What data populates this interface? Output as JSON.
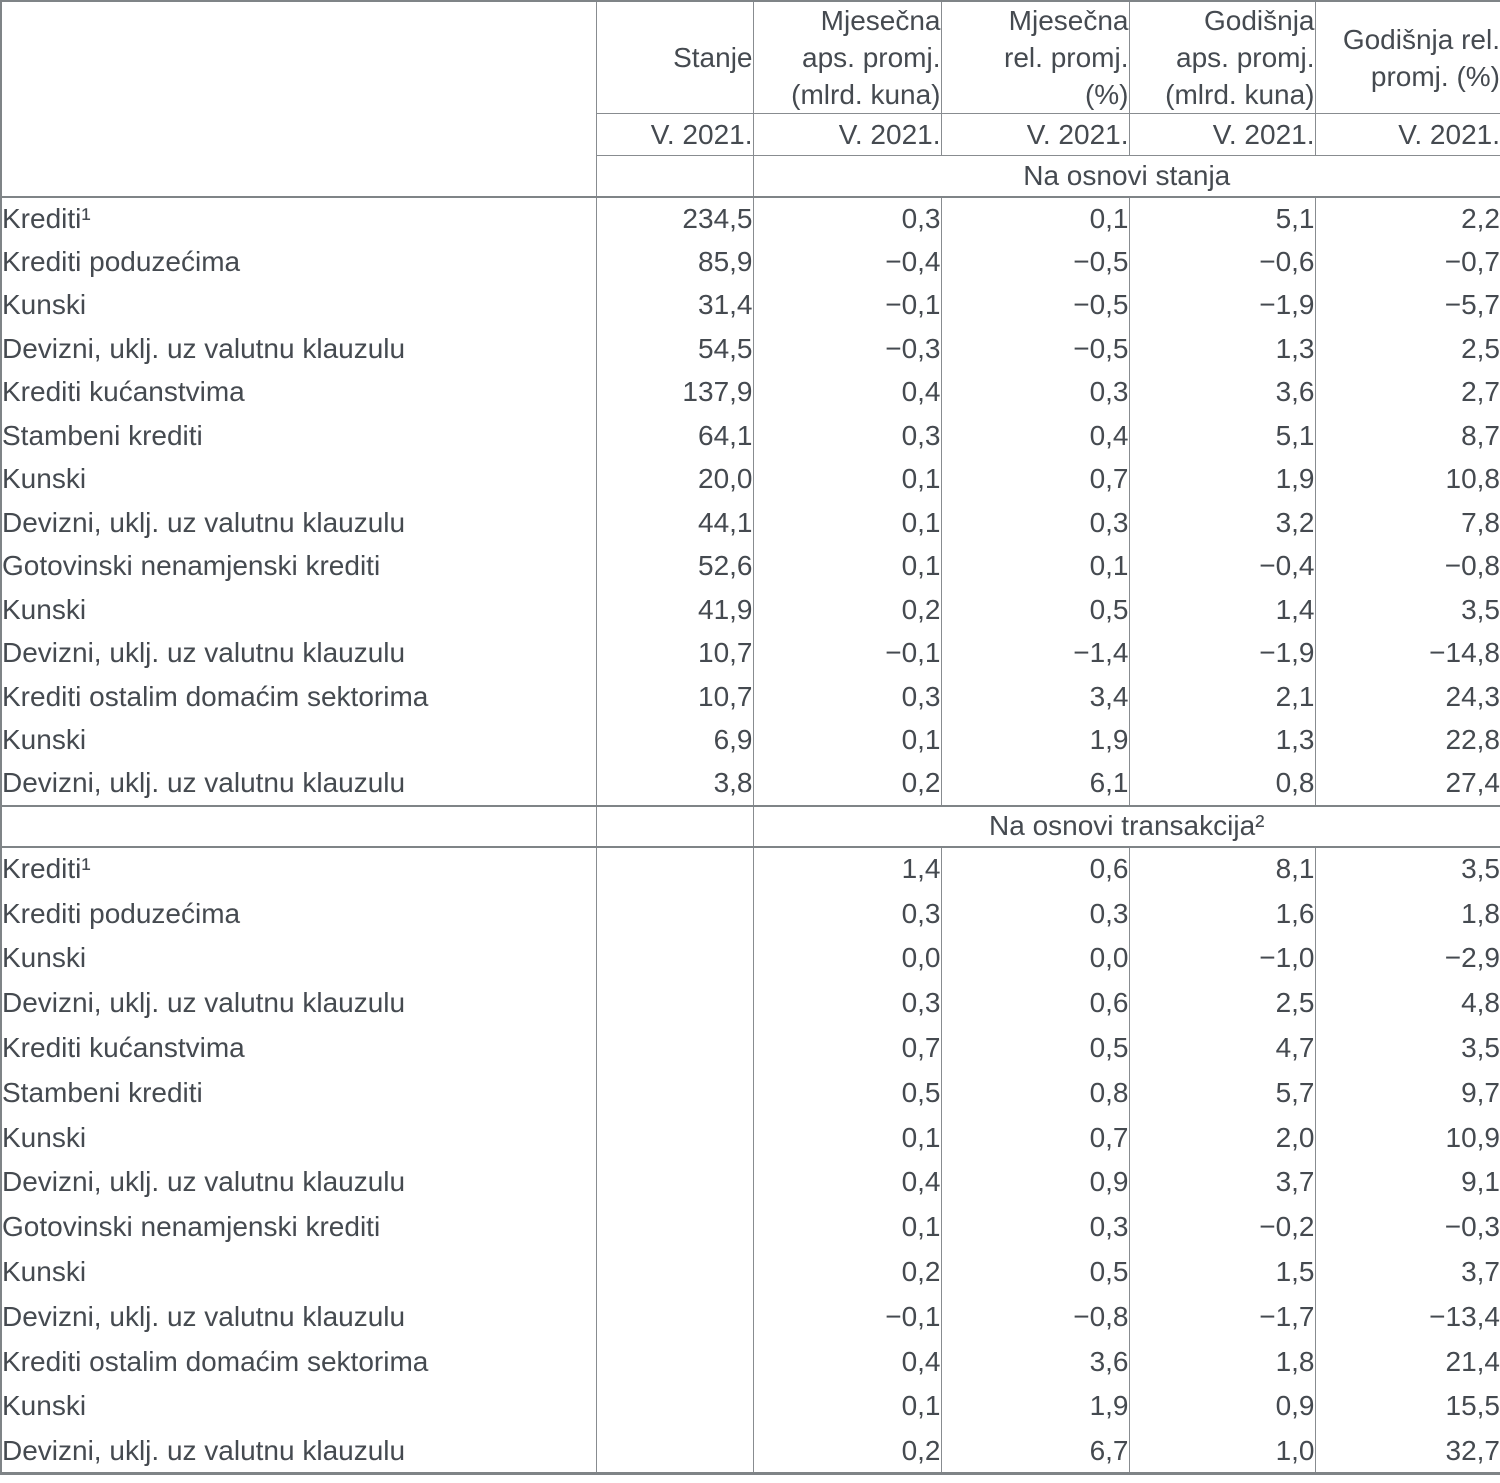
{
  "header": {
    "period": "V. 2021.",
    "columns": [
      "Stanje",
      "Mjesečna\naps. promj.\n(mlrd. kuna)",
      "Mjesečna\nrel. promj.\n(%)",
      "Godišnja\naps. promj.\n(mlrd. kuna)",
      "Godišnja rel.\npromj. (%)"
    ]
  },
  "sections": [
    {
      "band": "Na osnovi stanja",
      "rows": [
        {
          "label": "Krediti¹",
          "indent": 0,
          "values": [
            "234,5",
            "0,3",
            "0,1",
            "5,1",
            "2,2"
          ]
        },
        {
          "label": "Krediti poduzećima",
          "indent": 1,
          "values": [
            "85,9",
            "−0,4",
            "−0,5",
            "−0,6",
            "−0,7"
          ]
        },
        {
          "label": "Kunski",
          "indent": 3,
          "values": [
            "31,4",
            "−0,1",
            "−0,5",
            "−1,9",
            "−5,7"
          ]
        },
        {
          "label": "Devizni, uklj. uz valutnu klauzulu",
          "indent": 3,
          "values": [
            "54,5",
            "−0,3",
            "−0,5",
            "1,3",
            "2,5"
          ]
        },
        {
          "label": "Krediti kućanstvima",
          "indent": 1,
          "values": [
            "137,9",
            "0,4",
            "0,3",
            "3,6",
            "2,7"
          ]
        },
        {
          "label": "Stambeni krediti",
          "indent": 2,
          "values": [
            "64,1",
            "0,3",
            "0,4",
            "5,1",
            "8,7"
          ]
        },
        {
          "label": "Kunski",
          "indent": 3,
          "values": [
            "20,0",
            "0,1",
            "0,7",
            "1,9",
            "10,8"
          ]
        },
        {
          "label": "Devizni, uklj. uz valutnu klauzulu",
          "indent": 3,
          "values": [
            "44,1",
            "0,1",
            "0,3",
            "3,2",
            "7,8"
          ]
        },
        {
          "label": "Gotovinski nenamjenski krediti",
          "indent": 2,
          "values": [
            "52,6",
            "0,1",
            "0,1",
            "−0,4",
            "−0,8"
          ]
        },
        {
          "label": "Kunski",
          "indent": 3,
          "values": [
            "41,9",
            "0,2",
            "0,5",
            "1,4",
            "3,5"
          ]
        },
        {
          "label": "Devizni, uklj. uz valutnu klauzulu",
          "indent": 3,
          "values": [
            "10,7",
            "−0,1",
            "−1,4",
            "−1,9",
            "−14,8"
          ]
        },
        {
          "label": "Krediti ostalim domaćim sektorima",
          "indent": 1,
          "values": [
            "10,7",
            "0,3",
            "3,4",
            "2,1",
            "24,3"
          ]
        },
        {
          "label": "Kunski",
          "indent": 3,
          "values": [
            "6,9",
            "0,1",
            "1,9",
            "1,3",
            "22,8"
          ]
        },
        {
          "label": "Devizni, uklj. uz valutnu klauzulu",
          "indent": 3,
          "values": [
            "3,8",
            "0,2",
            "6,1",
            "0,8",
            "27,4"
          ]
        }
      ]
    },
    {
      "band": "Na osnovi transakcija²",
      "rows": [
        {
          "label": "Krediti¹",
          "indent": 0,
          "values": [
            "",
            "1,4",
            "0,6",
            "8,1",
            "3,5"
          ]
        },
        {
          "label": "Krediti poduzećima",
          "indent": 1,
          "values": [
            "",
            "0,3",
            "0,3",
            "1,6",
            "1,8"
          ]
        },
        {
          "label": "Kunski",
          "indent": 3,
          "values": [
            "",
            "0,0",
            "0,0",
            "−1,0",
            "−2,9"
          ]
        },
        {
          "label": "Devizni, uklj. uz valutnu klauzulu",
          "indent": 3,
          "values": [
            "",
            "0,3",
            "0,6",
            "2,5",
            "4,8"
          ]
        },
        {
          "label": "Krediti kućanstvima",
          "indent": 1,
          "values": [
            "",
            "0,7",
            "0,5",
            "4,7",
            "3,5"
          ]
        },
        {
          "label": "Stambeni krediti",
          "indent": 2,
          "values": [
            "",
            "0,5",
            "0,8",
            "5,7",
            "9,7"
          ]
        },
        {
          "label": "Kunski",
          "indent": 3,
          "values": [
            "",
            "0,1",
            "0,7",
            "2,0",
            "10,9"
          ]
        },
        {
          "label": "Devizni, uklj. uz valutnu klauzulu",
          "indent": 3,
          "values": [
            "",
            "0,4",
            "0,9",
            "3,7",
            "9,1"
          ]
        },
        {
          "label": "Gotovinski nenamjenski krediti",
          "indent": 2,
          "values": [
            "",
            "0,1",
            "0,3",
            "−0,2",
            "−0,3"
          ]
        },
        {
          "label": "Kunski",
          "indent": 3,
          "values": [
            "",
            "0,2",
            "0,5",
            "1,5",
            "3,7"
          ]
        },
        {
          "label": "Devizni, uklj. uz valutnu klauzulu",
          "indent": 3,
          "values": [
            "",
            "−0,1",
            "−0,8",
            "−1,7",
            "−13,4"
          ]
        },
        {
          "label": "Krediti ostalim domaćim sektorima",
          "indent": 1,
          "values": [
            "",
            "0,4",
            "3,6",
            "1,8",
            "21,4"
          ]
        },
        {
          "label": "Kunski",
          "indent": 3,
          "values": [
            "",
            "0,1",
            "1,9",
            "0,9",
            "15,5"
          ]
        },
        {
          "label": "Devizni, uklj. uz valutnu klauzulu",
          "indent": 3,
          "values": [
            "",
            "0,2",
            "6,7",
            "1,0",
            "32,7"
          ]
        }
      ]
    }
  ]
}
